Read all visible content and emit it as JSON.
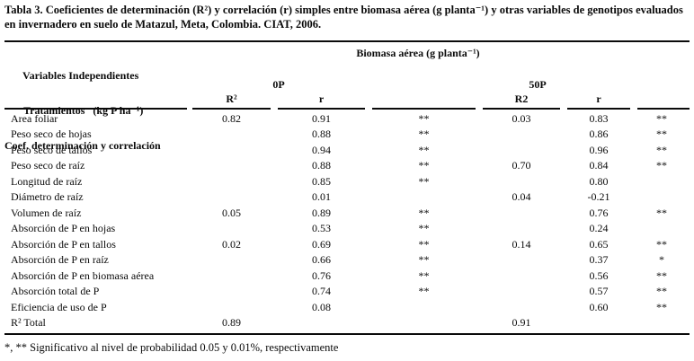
{
  "caption": "Tabla 3. Coeficientes de determinación (R²) y correlación (r) simples entre biomasa aérea (g planta⁻¹) y otras variables de genotipos evaluados en invernadero en suelo de Matazul, Meta, Colombia. CIAT, 2006.",
  "header": {
    "left_lines": {
      "line1": "Variables Independientes",
      "line2": "Tratamientos   (kg P ha⁻¹)",
      "line3": "Coef. determinación y correlación"
    },
    "group_title": "Biomasa aérea (g planta⁻¹)",
    "treatment_0p": "0P",
    "treatment_50p": "50P",
    "sub_p0_r2": "R²",
    "sub_p0_r": "r",
    "sub_p50_r2": "R2",
    "sub_p50_r": "r"
  },
  "rows": [
    {
      "label": "Area foliar",
      "p0_r2": "0.82",
      "p0_r": "0.91",
      "p0_sig": "**",
      "p50_r2": "0.03",
      "p50_r": "0.83",
      "p50_sig": "**"
    },
    {
      "label": "Peso seco de hojas",
      "p0_r2": "",
      "p0_r": "0.88",
      "p0_sig": "**",
      "p50_r2": "",
      "p50_r": "0.86",
      "p50_sig": "**"
    },
    {
      "label": "Peso seco de tallos",
      "p0_r2": "",
      "p0_r": "0.94",
      "p0_sig": "**",
      "p50_r2": "",
      "p50_r": "0.96",
      "p50_sig": "**"
    },
    {
      "label": "Peso seco de raíz",
      "p0_r2": "",
      "p0_r": "0.88",
      "p0_sig": "**",
      "p50_r2": "0.70",
      "p50_r": "0.84",
      "p50_sig": "**"
    },
    {
      "label": "Longitud de raíz",
      "p0_r2": "",
      "p0_r": "0.85",
      "p0_sig": "**",
      "p50_r2": "",
      "p50_r": "0.80",
      "p50_sig": ""
    },
    {
      "label": "Diámetro de raíz",
      "p0_r2": "",
      "p0_r": "0.01",
      "p0_sig": "",
      "p50_r2": "0.04",
      "p50_r": "-0.21",
      "p50_sig": ""
    },
    {
      "label": "Volumen de raíz",
      "p0_r2": "0.05",
      "p0_r": "0.89",
      "p0_sig": "**",
      "p50_r2": "",
      "p50_r": "0.76",
      "p50_sig": "**"
    },
    {
      "label": "Absorción de P en hojas",
      "p0_r2": "",
      "p0_r": "0.53",
      "p0_sig": "**",
      "p50_r2": "",
      "p50_r": "0.24",
      "p50_sig": ""
    },
    {
      "label": "Absorción de P en tallos",
      "p0_r2": "0.02",
      "p0_r": "0.69",
      "p0_sig": "**",
      "p50_r2": "0.14",
      "p50_r": "0.65",
      "p50_sig": "**"
    },
    {
      "label": "Absorción de P en raíz",
      "p0_r2": "",
      "p0_r": "0.66",
      "p0_sig": "**",
      "p50_r2": "",
      "p50_r": "0.37",
      "p50_sig": "*"
    },
    {
      "label": "Absorción de P en biomasa aérea",
      "p0_r2": "",
      "p0_r": "0.76",
      "p0_sig": "**",
      "p50_r2": "",
      "p50_r": "0.56",
      "p50_sig": "**"
    },
    {
      "label": "Absorción total de P",
      "p0_r2": "",
      "p0_r": "0.74",
      "p0_sig": "**",
      "p50_r2": "",
      "p50_r": "0.57",
      "p50_sig": "**"
    },
    {
      "label": "Eficiencia de uso de P",
      "p0_r2": "",
      "p0_r": "0.08",
      "p0_sig": "",
      "p50_r2": "",
      "p50_r": "0.60",
      "p50_sig": "**"
    },
    {
      "label": "R² Total",
      "p0_r2": "0.89",
      "p0_r": "",
      "p0_sig": "",
      "p50_r2": "0.91",
      "p50_r": "",
      "p50_sig": ""
    }
  ],
  "footnote": "*, ** Significativo al nivel de probabilidad 0.05 y 0.01%, respectivamente"
}
